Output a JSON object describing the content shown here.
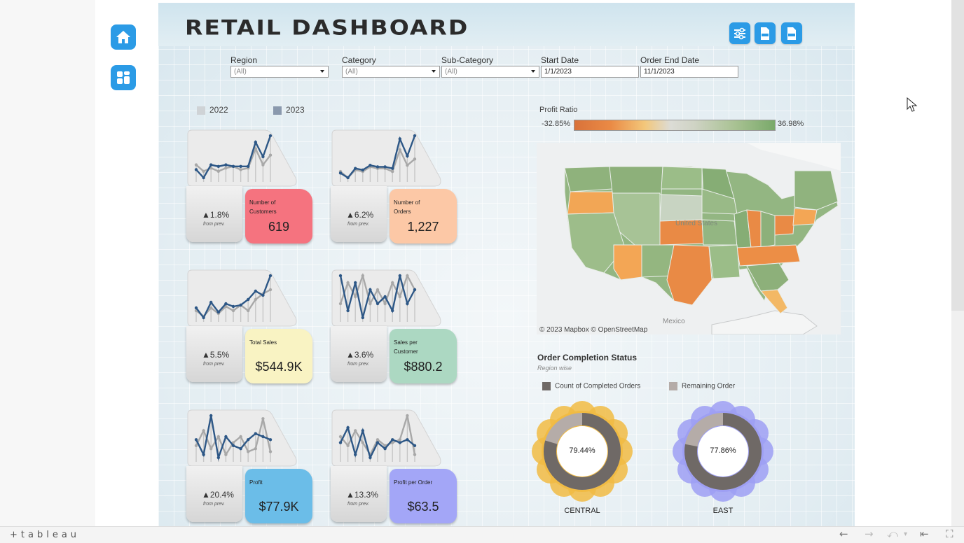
{
  "dashboard": {
    "title": "RETAIL DASHBOARD",
    "tool_icons": [
      "filter-sliders-icon",
      "pdf-export-icon",
      "png-export-icon"
    ]
  },
  "nav": {
    "icons": [
      "home-icon",
      "dashboard-grid-icon"
    ]
  },
  "filters": [
    {
      "label": "Region",
      "value": "(All)"
    },
    {
      "label": "Category",
      "value": "(All)"
    },
    {
      "label": "Sub-Category",
      "value": "(All)"
    },
    {
      "label": "Start Date",
      "value": "1/1/2023"
    },
    {
      "label": "Order End Date",
      "value": "11/1/2023"
    }
  ],
  "year_legend": {
    "y2022": "2022",
    "y2023": "2023",
    "color_2022": "#cfd3d6",
    "color_2023": "#8a99ad"
  },
  "kpis": [
    {
      "label": "Number of Customers",
      "value": "619",
      "change": "▲1.8%",
      "sub": "from prev.",
      "color": "#f5737f",
      "series_2022": [
        28,
        24,
        26,
        24,
        26,
        27,
        25,
        26,
        38,
        28,
        34
      ],
      "series_2023": [
        25,
        20,
        28,
        27,
        28,
        27,
        27,
        27,
        42,
        33,
        46
      ]
    },
    {
      "label": "Number of Orders",
      "value": "1,227",
      "change": "▲6.2%",
      "sub": "from prev.",
      "color": "#fcc8a6",
      "series_2022": [
        24,
        20,
        25,
        24,
        27,
        26,
        26,
        24,
        38,
        28,
        32
      ],
      "series_2023": [
        23,
        20,
        26,
        25,
        28,
        27,
        27,
        26,
        45,
        34,
        47
      ]
    },
    {
      "label": "Total Sales",
      "value": "$544.9K",
      "change": "▲5.5%",
      "sub": "from prev.",
      "color": "#f9f3c3",
      "series_2022": [
        22,
        18,
        24,
        20,
        25,
        22,
        26,
        22,
        30,
        34,
        37
      ],
      "series_2023": [
        24,
        17,
        28,
        21,
        27,
        25,
        26,
        30,
        36,
        33,
        47
      ]
    },
    {
      "label": "Sales per Customer",
      "value": "$880.2",
      "change": "▲3.6%",
      "sub": "from prev.",
      "color": "#acd8c2",
      "series_2022": [
        40,
        46,
        42,
        48,
        40,
        44,
        40,
        46,
        42,
        48,
        44
      ],
      "series_2023": [
        48,
        38,
        46,
        36,
        44,
        40,
        42,
        38,
        48,
        40,
        44
      ]
    },
    {
      "label": "Profit",
      "value": "$77.9K",
      "change": "▲20.4%",
      "sub": "from prev.",
      "color": "#6bbde8",
      "series_2022": [
        24,
        34,
        22,
        30,
        18,
        26,
        30,
        20,
        22,
        42,
        20
      ],
      "series_2023": [
        28,
        18,
        44,
        16,
        30,
        24,
        22,
        28,
        32,
        30,
        28
      ]
    },
    {
      "label": "Profit per Order",
      "value": "$63.5",
      "change": "▲13.3%",
      "sub": "from prev.",
      "color": "#a3a6f7",
      "series_2022": [
        30,
        24,
        34,
        26,
        18,
        28,
        24,
        26,
        28,
        44,
        18
      ],
      "series_2023": [
        26,
        36,
        18,
        34,
        16,
        26,
        22,
        28,
        26,
        28,
        24
      ]
    }
  ],
  "profit_ratio": {
    "title": "Profit Ratio",
    "min": "-32.85%",
    "max": "36.98%",
    "color_min": "#d9723a",
    "color_mid": "#dcdcd6",
    "color_max": "#79a96a"
  },
  "map": {
    "attribution": "© 2023 Mapbox  © OpenStreetMap",
    "labels": [
      "Mexico",
      "United States"
    ]
  },
  "order_status": {
    "title": "Order Completion Status",
    "subtitle": "Region wise",
    "legend_completed": "Count of Completed Orders",
    "legend_remaining": "Remaining Order",
    "color_completed": "#6f6966",
    "color_remaining": "#b5aca8",
    "regions": [
      {
        "name": "CENTRAL",
        "pct": "79.44%",
        "completed": 0.7944,
        "halo": "#f1bb43"
      },
      {
        "name": "EAST",
        "pct": "77.86%",
        "completed": 0.7786,
        "halo": "#9e9ff3"
      }
    ]
  },
  "footer": {
    "brand": "+tableau"
  }
}
